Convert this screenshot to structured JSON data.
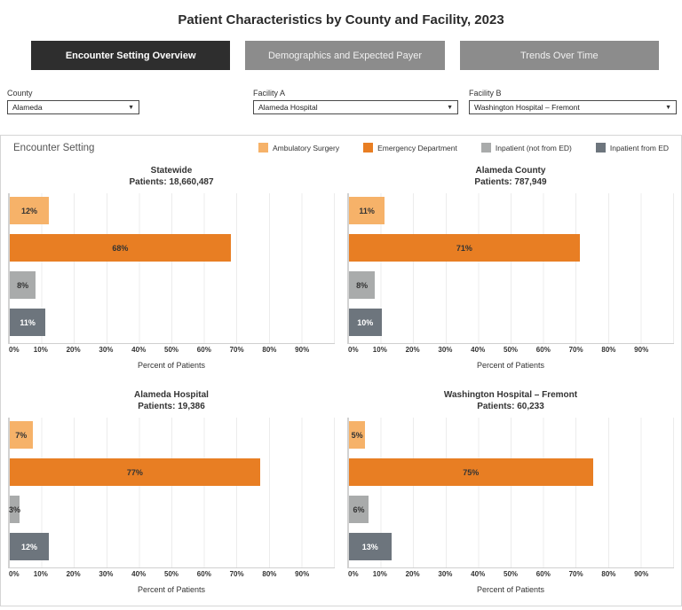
{
  "header": {
    "title": "Patient Characteristics by County and Facility, 2023"
  },
  "tabs": [
    {
      "label": "Encounter Setting Overview",
      "active": true
    },
    {
      "label": "Demographics and Expected Payer",
      "active": false
    },
    {
      "label": "Trends Over Time",
      "active": false
    }
  ],
  "filters": [
    {
      "label": "County",
      "value": "Alameda"
    },
    {
      "label": "Facility A",
      "value": "Alameda Hospital"
    },
    {
      "label": "Facility B",
      "value": "Washington Hospital – Fremont"
    }
  ],
  "legend": {
    "title": "Encounter Setting",
    "items": [
      {
        "label": "Ambulatory Surgery",
        "color": "#f6b269"
      },
      {
        "label": "Emergency Department",
        "color": "#e87e23"
      },
      {
        "label": "Inpatient (not from ED)",
        "color": "#a9abab"
      },
      {
        "label": "Inpatient from ED",
        "color": "#6d757d"
      }
    ]
  },
  "chart_data": {
    "type": "bar",
    "orientation": "horizontal",
    "categories": [
      "Ambulatory Surgery",
      "Emergency Department",
      "Inpatient (not from ED)",
      "Inpatient from ED"
    ],
    "series_colors": [
      "#f6b269",
      "#e87e23",
      "#a9abab",
      "#6d757d"
    ],
    "bar_label_colors": [
      "#333333",
      "#333333",
      "#333333",
      "#ffffff"
    ],
    "xlabel": "Percent of Patients",
    "xlim": [
      0,
      100
    ],
    "x_ticks": [
      "0%",
      "10%",
      "20%",
      "30%",
      "40%",
      "50%",
      "60%",
      "70%",
      "80%",
      "90%"
    ],
    "grid": true,
    "charts": [
      {
        "title": "Statewide",
        "subtitle": "Patients: 18,660,487",
        "values": [
          12,
          68,
          8,
          11
        ],
        "labels": [
          "12%",
          "68%",
          "8%",
          "11%"
        ]
      },
      {
        "title": "Alameda County",
        "subtitle": "Patients: 787,949",
        "values": [
          11,
          71,
          8,
          10
        ],
        "labels": [
          "11%",
          "71%",
          "8%",
          "10%"
        ]
      },
      {
        "title": "Alameda Hospital",
        "subtitle": "Patients: 19,386",
        "values": [
          7,
          77,
          3,
          12
        ],
        "labels": [
          "7%",
          "77%",
          "3%",
          "12%"
        ]
      },
      {
        "title": "Washington Hospital – Fremont",
        "subtitle": "Patients: 60,233",
        "values": [
          5,
          75,
          6,
          13
        ],
        "labels": [
          "5%",
          "75%",
          "6%",
          "13%"
        ]
      }
    ]
  }
}
